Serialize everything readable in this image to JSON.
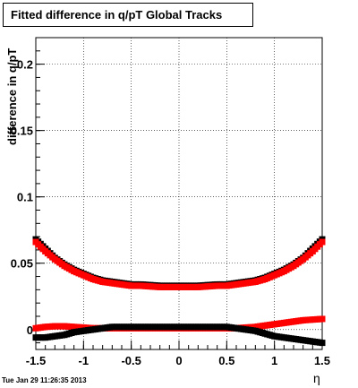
{
  "title": "Fitted difference in q/pT  Global Tracks",
  "timestamp": "Tue Jan 29 11:26:35 2013",
  "chart_data": {
    "type": "scatter",
    "title": "Fitted difference in q/pT  Global Tracks",
    "xlabel": "η",
    "ylabel": "difference in q/pT",
    "xlim": [
      -1.5,
      1.5
    ],
    "ylim": [
      -0.015,
      0.22
    ],
    "grid": true,
    "x_ticks": [
      "-1.5",
      "-1",
      "-0.5",
      "0",
      "0.5",
      "1",
      "1.5"
    ],
    "y_ticks": [
      "0",
      "0.05",
      "0.1",
      "0.15",
      "0.2"
    ],
    "series": [
      {
        "color": "#000000",
        "x": [
          -1.5,
          -1.4,
          -1.3,
          -1.2,
          -1.1,
          -1.0,
          -0.9,
          -0.8,
          -0.7,
          -0.6,
          -0.5,
          -0.4,
          -0.3,
          -0.2,
          -0.1,
          0.0,
          0.1,
          0.2,
          0.3,
          0.4,
          0.5,
          0.6,
          0.7,
          0.8,
          0.9,
          1.0,
          1.1,
          1.2,
          1.3,
          1.4,
          1.5
        ],
        "y": [
          0.068,
          0.061,
          0.054,
          0.049,
          0.045,
          0.042,
          0.039,
          0.037,
          0.036,
          0.035,
          0.034,
          0.034,
          0.0335,
          0.033,
          0.033,
          0.033,
          0.033,
          0.033,
          0.0335,
          0.034,
          0.034,
          0.035,
          0.036,
          0.037,
          0.039,
          0.042,
          0.045,
          0.049,
          0.054,
          0.061,
          0.068
        ]
      },
      {
        "color": "#ff0000",
        "x": [
          -1.5,
          -1.4,
          -1.3,
          -1.2,
          -1.1,
          -1.0,
          -0.9,
          -0.8,
          -0.7,
          -0.6,
          -0.5,
          -0.4,
          -0.3,
          -0.2,
          -0.1,
          0.0,
          0.1,
          0.2,
          0.3,
          0.4,
          0.5,
          0.6,
          0.7,
          0.8,
          0.9,
          1.0,
          1.1,
          1.2,
          1.3,
          1.4,
          1.5
        ],
        "y": [
          0.066,
          0.059,
          0.053,
          0.048,
          0.044,
          0.041,
          0.038,
          0.036,
          0.035,
          0.034,
          0.033,
          0.033,
          0.0325,
          0.032,
          0.032,
          0.032,
          0.032,
          0.032,
          0.0325,
          0.033,
          0.033,
          0.034,
          0.035,
          0.036,
          0.038,
          0.041,
          0.044,
          0.048,
          0.053,
          0.059,
          0.066
        ]
      },
      {
        "color": "#ff0000",
        "x": [
          -1.5,
          -1.4,
          -1.3,
          -1.2,
          -1.1,
          -1.0,
          -0.9,
          -0.8,
          -0.7,
          -0.6,
          -0.5,
          -0.4,
          -0.3,
          -0.2,
          -0.1,
          0.0,
          0.1,
          0.2,
          0.3,
          0.4,
          0.5,
          0.6,
          0.7,
          0.8,
          0.9,
          1.0,
          1.1,
          1.2,
          1.3,
          1.4,
          1.5
        ],
        "y": [
          0.001,
          0.002,
          0.0025,
          0.0025,
          0.002,
          0.0015,
          0.001,
          0.001,
          0.001,
          0.001,
          0.001,
          0.001,
          0.001,
          0.001,
          0.001,
          0.001,
          0.001,
          0.001,
          0.001,
          0.001,
          0.001,
          0.001,
          0.0015,
          0.002,
          0.003,
          0.004,
          0.005,
          0.006,
          0.007,
          0.0075,
          0.008
        ]
      },
      {
        "color": "#000000",
        "x": [
          -1.5,
          -1.4,
          -1.3,
          -1.2,
          -1.1,
          -1.0,
          -0.9,
          -0.8,
          -0.7,
          -0.6,
          -0.5,
          -0.4,
          -0.3,
          -0.2,
          -0.1,
          0.0,
          0.1,
          0.2,
          0.3,
          0.4,
          0.5,
          0.6,
          0.7,
          0.8,
          0.9,
          1.0,
          1.1,
          1.2,
          1.3,
          1.4,
          1.5
        ],
        "y": [
          -0.006,
          -0.006,
          -0.005,
          -0.004,
          -0.002,
          -0.001,
          0.0,
          0.001,
          0.002,
          0.002,
          0.002,
          0.002,
          0.002,
          0.002,
          0.002,
          0.002,
          0.002,
          0.002,
          0.002,
          0.002,
          0.002,
          0.001,
          0.0,
          -0.001,
          -0.003,
          -0.005,
          -0.006,
          -0.007,
          -0.008,
          -0.009,
          -0.01
        ]
      }
    ]
  }
}
